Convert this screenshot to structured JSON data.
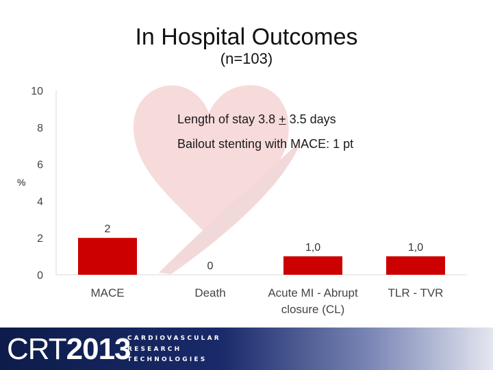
{
  "slide": {
    "title": "In Hospital Outcomes",
    "subtitle": "(n=103)",
    "ylabel": "%",
    "annotations": {
      "line1_before": "Length of stay 3.8 ",
      "line1_plus": "+",
      "line1_after": " 3.5 days",
      "line2": "Bailout stenting with MACE: 1 pt"
    }
  },
  "chart_data": {
    "type": "bar",
    "categories": [
      "MACE",
      "Death",
      "Acute MI - Abrupt closure (CL)",
      "TLR - TVR"
    ],
    "category_lines": [
      [
        "MACE"
      ],
      [
        "Death"
      ],
      [
        "Acute MI - Abrupt",
        "closure (CL)"
      ],
      [
        "TLR - TVR"
      ]
    ],
    "values": [
      2,
      0,
      1.0,
      1.0
    ],
    "value_labels": [
      "2",
      "0",
      "1,0",
      "1,0"
    ],
    "ylim": [
      0,
      10
    ],
    "yticks": [
      0,
      2,
      4,
      6,
      8,
      10
    ],
    "bar_color": "#cc0000",
    "grid": false
  },
  "footer": {
    "logo_prefix": "CRT",
    "logo_year": "2013",
    "line1": "CARDIOVASCULAR",
    "line2": "RESEARCH",
    "line3": "TECHNOLOGIES"
  }
}
